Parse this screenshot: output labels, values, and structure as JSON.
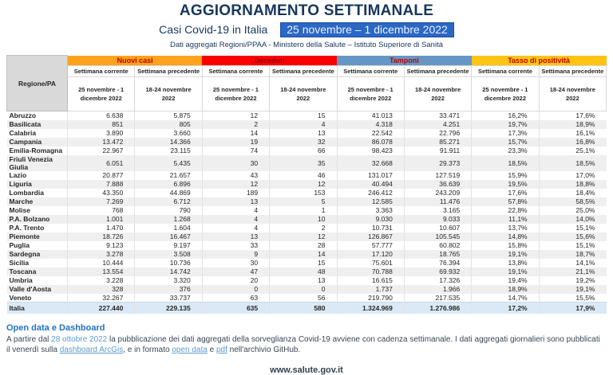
{
  "header": {
    "title": "AGGIORNAMENTO SETTIMANALE",
    "subtitle": "Casi Covid-19 in Italia",
    "period_highlight": "25 novembre – 1 dicembre 2022",
    "period_highlight_bg": "#2B67C4",
    "source_line": "Dati aggregati Regioni/PPAA - Ministero della Salute – Istituto Superiore di Sanità"
  },
  "table": {
    "region_header": "Regione/PA",
    "groups": [
      {
        "label": "Nuovi casi",
        "color": "#FCA31B",
        "text_color": "#C00000"
      },
      {
        "label": "Deceduti",
        "color": "#FB0000",
        "text_color": "#9C0006"
      },
      {
        "label": "Tamponi",
        "color": "#6697C4",
        "text_color": "#C00000"
      },
      {
        "label": "Tasso di positività",
        "color": "#FDC315",
        "text_color": "#C00000"
      }
    ],
    "subheaders": {
      "current": "Settimana corrente",
      "previous": "Settimana precedente"
    },
    "period_current": "25 novembre - 1 dicembre 2022",
    "period_previous": "18-24 novembre 2022",
    "rows": [
      {
        "region": "Abruzzo",
        "values": [
          "6.638",
          "5.875",
          "12",
          "15",
          "41.013",
          "33.471",
          "16,2%",
          "17,6%"
        ]
      },
      {
        "region": "Basilicata",
        "values": [
          "851",
          "805",
          "2",
          "4",
          "4.318",
          "4.251",
          "19,7%",
          "18,9%"
        ]
      },
      {
        "region": "Calabria",
        "values": [
          "3.890",
          "3.660",
          "14",
          "13",
          "22.542",
          "22.796",
          "17,3%",
          "16,1%"
        ]
      },
      {
        "region": "Campania",
        "values": [
          "13.472",
          "14.366",
          "19",
          "32",
          "86.078",
          "85.271",
          "15,7%",
          "16,8%"
        ]
      },
      {
        "region": "Emilia-Romagna",
        "values": [
          "22.967",
          "23.115",
          "74",
          "66",
          "98.423",
          "91.911",
          "23,3%",
          "25,1%"
        ]
      },
      {
        "region": "Friuli Venezia Giulia",
        "values": [
          "6.051",
          "5.435",
          "30",
          "35",
          "32.668",
          "29.373",
          "18,5%",
          "18,5%"
        ]
      },
      {
        "region": "Lazio",
        "values": [
          "20.877",
          "21.657",
          "43",
          "46",
          "131.017",
          "127.519",
          "15,9%",
          "17,0%"
        ]
      },
      {
        "region": "Liguria",
        "values": [
          "7.888",
          "6.896",
          "12",
          "12",
          "40.494",
          "36.639",
          "19,5%",
          "18,8%"
        ]
      },
      {
        "region": "Lombardia",
        "values": [
          "43.350",
          "44.869",
          "189",
          "153",
          "246.412",
          "243.209",
          "17,6%",
          "18,4%"
        ]
      },
      {
        "region": "Marche",
        "values": [
          "7.269",
          "6.712",
          "13",
          "5",
          "12.585",
          "11.476",
          "57,8%",
          "58,5%"
        ]
      },
      {
        "region": "Molise",
        "values": [
          "768",
          "790",
          "4",
          "1",
          "3.363",
          "3.165",
          "22,8%",
          "25,0%"
        ]
      },
      {
        "region": "P.A. Bolzano",
        "values": [
          "1.001",
          "1.268",
          "4",
          "10",
          "9.030",
          "9.033",
          "11,1%",
          "14,0%"
        ]
      },
      {
        "region": "P.A. Trento",
        "values": [
          "1.470",
          "1.604",
          "4",
          "2",
          "10.731",
          "10.607",
          "13,7%",
          "15,1%"
        ]
      },
      {
        "region": "Piemonte",
        "values": [
          "18.726",
          "16.467",
          "13",
          "12",
          "126.867",
          "105.545",
          "14,8%",
          "15,6%"
        ]
      },
      {
        "region": "Puglia",
        "values": [
          "9.123",
          "9.197",
          "33",
          "28",
          "57.777",
          "60.802",
          "15,8%",
          "15,1%"
        ]
      },
      {
        "region": "Sardegna",
        "values": [
          "3.278",
          "3.508",
          "9",
          "14",
          "17.120",
          "18.765",
          "19,1%",
          "18,7%"
        ]
      },
      {
        "region": "Sicilia",
        "values": [
          "10.444",
          "10.736",
          "30",
          "15",
          "75.601",
          "76.394",
          "13,8%",
          "14,1%"
        ]
      },
      {
        "region": "Toscana",
        "values": [
          "13.554",
          "14.742",
          "47",
          "48",
          "70.788",
          "69.932",
          "19,1%",
          "21,1%"
        ]
      },
      {
        "region": "Umbria",
        "values": [
          "3.228",
          "3.320",
          "20",
          "13",
          "16.615",
          "17.326",
          "19,4%",
          "19,2%"
        ]
      },
      {
        "region": "Valle d'Aosta",
        "values": [
          "328",
          "376",
          "0",
          "0",
          "1.737",
          "1.966",
          "18,9%",
          "19,1%"
        ]
      },
      {
        "region": "Veneto",
        "values": [
          "32.267",
          "33.737",
          "63",
          "56",
          "219.790",
          "217.535",
          "14,7%",
          "15,5%"
        ]
      }
    ],
    "total_row": {
      "region": "Italia",
      "values": [
        "227.440",
        "229.135",
        "635",
        "580",
        "1.324.969",
        "1.276.986",
        "17,2%",
        "17,9%"
      ]
    }
  },
  "footer": {
    "note_title": "Open data e Dashboard",
    "text_p1": "A partire dal ",
    "date_accent": "28 ottobre 2022",
    "text_p2": " la pubblicazione dei dati aggregati della sorveglianza Covid-19 avviene con cadenza settimanale. I dati aggregati giornalieri sono pubblicati il venerdì sulla ",
    "link_arcgis": "dashboard ArcGis",
    "text_p3": ", e in formato ",
    "link_opendata": "open data",
    "text_p4": " e ",
    "link_pdf": "pdf",
    "text_p5": " nell'archivio GitHub.",
    "site": "www.salute.gov.it"
  }
}
